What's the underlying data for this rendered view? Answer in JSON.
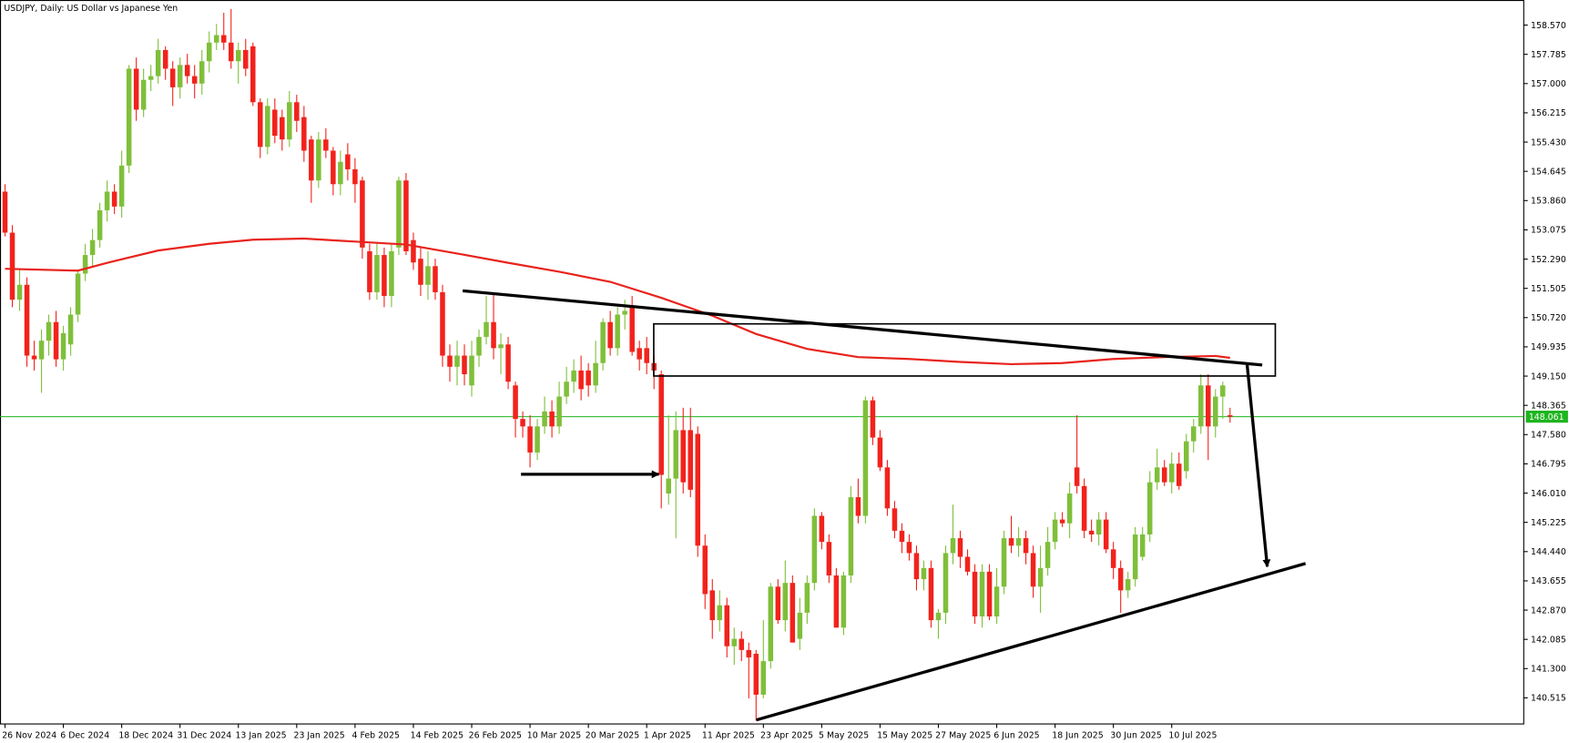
{
  "chart_data": {
    "type": "candlestick",
    "title": "USDJPY, Daily:  US Dollar vs Japanese Yen",
    "categories": [
      "26 Nov 2024",
      null,
      null,
      null,
      null,
      null,
      null,
      null,
      "6 Dec 2024",
      null,
      null,
      null,
      null,
      null,
      null,
      null,
      "18 Dec 2024",
      null,
      null,
      null,
      null,
      null,
      null,
      null,
      "31 Dec 2024",
      null,
      null,
      null,
      null,
      null,
      null,
      null,
      "13 Jan 2025",
      null,
      null,
      null,
      null,
      null,
      null,
      null,
      "23 Jan 2025",
      null,
      null,
      null,
      null,
      null,
      null,
      null,
      "4 Feb 2025",
      null,
      null,
      null,
      null,
      null,
      null,
      null,
      "14 Feb 2025",
      null,
      null,
      null,
      null,
      null,
      null,
      null,
      "26 Feb 2025",
      null,
      null,
      null,
      null,
      null,
      null,
      null,
      "10 Mar 2025",
      null,
      null,
      null,
      null,
      null,
      null,
      null,
      "20 Mar 2025",
      null,
      null,
      null,
      null,
      null,
      null,
      null,
      "1 Apr 2025",
      null,
      null,
      null,
      null,
      null,
      null,
      null,
      "11 Apr 2025",
      null,
      null,
      null,
      null,
      null,
      null,
      null,
      "23 Apr 2025",
      null,
      null,
      null,
      null,
      null,
      null,
      null,
      "5 May 2025",
      null,
      null,
      null,
      null,
      null,
      null,
      null,
      "15 May 2025",
      null,
      null,
      null,
      null,
      null,
      null,
      null,
      "27 May 2025",
      null,
      null,
      null,
      null,
      null,
      null,
      null,
      "6 Jun 2025",
      null,
      null,
      null,
      null,
      null,
      null,
      null,
      "18 Jun 2025",
      null,
      null,
      null,
      null,
      null,
      null,
      null,
      "30 Jun 2025",
      null,
      null,
      null,
      null,
      null,
      null,
      null,
      "10 Jul 2025",
      null,
      null,
      null,
      null,
      null,
      null,
      null,
      null
    ],
    "open": [
      154.1,
      153.0,
      151.2,
      151.6,
      149.7,
      149.6,
      150.1,
      150.6,
      149.6,
      150.0,
      150.8,
      151.9,
      152.4,
      152.8,
      153.6,
      154.1,
      153.7,
      154.8,
      157.4,
      156.3,
      157.1,
      157.2,
      157.9,
      157.4,
      156.9,
      157.5,
      157.2,
      157.0,
      157.6,
      158.1,
      158.3,
      158.1,
      157.6,
      157.9,
      158.0,
      156.5,
      155.3,
      156.3,
      156.1,
      155.5,
      156.5,
      156.1,
      155.5,
      154.4,
      155.5,
      155.2,
      154.3,
      155.1,
      154.7,
      154.4,
      152.5,
      151.4,
      152.4,
      151.3,
      152.6,
      154.4,
      152.8,
      152.3,
      151.6,
      152.1,
      151.4,
      149.7,
      149.4,
      149.7,
      148.9,
      149.7,
      150.2,
      150.6,
      149.9,
      150.0,
      148.9,
      148.0,
      147.8,
      147.1,
      147.8,
      148.2,
      147.8,
      148.6,
      149.0,
      149.3,
      149.3,
      148.9,
      149.5,
      150.6,
      149.9,
      150.8,
      151.0,
      149.9,
      149.9,
      149.5,
      149.2,
      146.0,
      146.4,
      147.7,
      147.7,
      147.6,
      144.6,
      143.4,
      142.6,
      143.0,
      141.9,
      142.1,
      141.8,
      141.7,
      140.6,
      141.5,
      143.5,
      142.6,
      143.6,
      142.1,
      142.8,
      143.6,
      145.4,
      144.7,
      143.8,
      142.4,
      143.8,
      145.9,
      145.4,
      148.5,
      147.5,
      146.7,
      145.6,
      145.0,
      144.7,
      144.4,
      143.7,
      144.0,
      142.6,
      142.8,
      144.4,
      144.8,
      144.3,
      143.9,
      142.7,
      143.9,
      142.7,
      143.5,
      144.8,
      144.6,
      144.8,
      144.4,
      143.5,
      144.0,
      144.7,
      145.3,
      145.2,
      146.7,
      146.2,
      145.0,
      144.9,
      145.3,
      144.5,
      144.0,
      143.4,
      143.7,
      144.3,
      144.9,
      146.3,
      146.7,
      146.3,
      146.8,
      146.6,
      147.4,
      147.8,
      148.9,
      147.8,
      148.6,
      148.1
    ],
    "high": [
      154.3,
      153.2,
      152.0,
      151.8,
      150.1,
      150.4,
      150.8,
      150.9,
      150.5,
      151.0,
      152.0,
      152.7,
      153.1,
      153.8,
      154.4,
      154.3,
      155.2,
      157.5,
      157.7,
      157.4,
      157.5,
      158.2,
      158.0,
      157.6,
      157.7,
      157.8,
      157.5,
      157.9,
      158.4,
      158.6,
      158.9,
      159.0,
      158.1,
      158.2,
      158.1,
      156.6,
      156.6,
      156.6,
      156.3,
      156.8,
      156.7,
      156.4,
      155.6,
      155.7,
      155.8,
      155.3,
      155.2,
      155.4,
      155.0,
      154.5,
      152.7,
      152.7,
      152.6,
      152.7,
      154.5,
      154.6,
      153.0,
      152.6,
      152.5,
      152.3,
      151.6,
      150.0,
      150.1,
      150.0,
      150.1,
      150.4,
      151.3,
      151.4,
      150.3,
      150.2,
      149.0,
      148.2,
      148.1,
      148.0,
      148.6,
      148.5,
      149.0,
      149.4,
      149.6,
      149.7,
      149.5,
      150.1,
      150.7,
      150.9,
      151.0,
      151.2,
      151.3,
      150.1,
      150.2,
      149.7,
      149.3,
      148.1,
      148.2,
      148.3,
      148.3,
      147.8,
      144.9,
      143.7,
      143.4,
      143.2,
      142.4,
      142.3,
      142.0,
      141.8,
      142.6,
      143.6,
      143.7,
      144.2,
      143.8,
      143.2,
      143.8,
      145.6,
      145.5,
      144.9,
      144.0,
      143.9,
      146.2,
      146.4,
      148.6,
      148.6,
      147.7,
      146.9,
      145.8,
      145.2,
      144.9,
      144.6,
      144.2,
      144.2,
      142.9,
      144.6,
      145.7,
      145.0,
      144.5,
      144.1,
      144.1,
      144.1,
      144.0,
      145.0,
      145.4,
      145.1,
      145.0,
      144.6,
      144.6,
      145.1,
      145.5,
      145.5,
      146.3,
      148.1,
      146.4,
      145.3,
      145.5,
      145.5,
      144.7,
      144.2,
      143.9,
      145.1,
      145.1,
      146.6,
      147.2,
      146.9,
      147.1,
      147.1,
      147.6,
      148.0,
      149.2,
      149.2,
      148.8,
      149.0,
      148.3
    ],
    "low": [
      152.9,
      151.0,
      150.9,
      149.4,
      149.3,
      148.7,
      149.7,
      149.4,
      149.3,
      149.7,
      150.6,
      151.7,
      152.1,
      152.6,
      153.3,
      153.5,
      153.4,
      154.6,
      156.0,
      156.1,
      156.8,
      157.0,
      157.1,
      156.4,
      156.6,
      157.0,
      156.6,
      156.7,
      157.3,
      157.9,
      157.9,
      157.4,
      157.0,
      157.2,
      156.4,
      155.0,
      155.1,
      155.4,
      155.2,
      155.3,
      155.7,
      154.9,
      153.8,
      154.2,
      155.0,
      154.0,
      154.0,
      154.4,
      153.8,
      152.3,
      151.2,
      151.2,
      151.0,
      151.0,
      152.4,
      152.4,
      152.0,
      151.3,
      151.2,
      151.2,
      149.4,
      149.0,
      148.9,
      148.9,
      148.6,
      149.4,
      150.0,
      149.6,
      149.2,
      148.8,
      147.5,
      147.5,
      146.7,
      146.9,
      147.6,
      147.5,
      147.6,
      148.4,
      148.7,
      148.5,
      148.6,
      148.7,
      149.3,
      149.7,
      149.7,
      150.4,
      149.7,
      149.3,
      149.2,
      148.8,
      145.6,
      145.7,
      144.8,
      146.0,
      145.9,
      144.3,
      142.9,
      142.1,
      142.3,
      141.6,
      141.4,
      141.5,
      140.5,
      139.9,
      140.5,
      141.3,
      142.5,
      142.3,
      142.0,
      141.8,
      142.5,
      143.4,
      144.5,
      143.6,
      142.4,
      142.2,
      143.6,
      145.2,
      145.2,
      147.3,
      146.6,
      145.4,
      144.8,
      144.4,
      144.2,
      143.4,
      143.4,
      142.4,
      142.1,
      142.5,
      144.1,
      144.0,
      143.8,
      142.5,
      142.4,
      142.6,
      142.5,
      143.3,
      144.4,
      144.3,
      144.1,
      143.2,
      142.8,
      143.8,
      144.5,
      145.1,
      144.8,
      146.0,
      144.8,
      144.7,
      144.6,
      144.4,
      143.7,
      142.8,
      143.2,
      143.5,
      144.2,
      144.7,
      146.1,
      146.2,
      146.0,
      146.1,
      146.4,
      147.1,
      147.6,
      146.9,
      147.5,
      148.0,
      147.9
    ],
    "close": [
      153.0,
      151.2,
      151.6,
      149.7,
      149.6,
      150.1,
      150.6,
      149.6,
      150.3,
      150.8,
      151.9,
      152.4,
      152.8,
      153.6,
      154.1,
      153.7,
      154.8,
      157.4,
      156.3,
      157.1,
      157.2,
      157.9,
      157.4,
      156.9,
      157.5,
      157.2,
      157.0,
      157.6,
      158.1,
      158.3,
      158.1,
      157.6,
      157.9,
      157.4,
      156.5,
      155.3,
      156.4,
      155.6,
      155.5,
      156.5,
      156.0,
      155.2,
      154.4,
      155.5,
      155.2,
      154.3,
      154.9,
      154.7,
      154.3,
      152.6,
      151.4,
      152.4,
      151.3,
      152.5,
      154.4,
      152.5,
      152.2,
      151.6,
      152.1,
      151.4,
      149.7,
      149.4,
      149.7,
      149.2,
      149.7,
      150.2,
      150.6,
      149.9,
      150.0,
      149.0,
      148.0,
      147.8,
      147.1,
      147.8,
      148.2,
      147.8,
      148.6,
      149.0,
      149.3,
      148.8,
      148.9,
      149.5,
      150.6,
      149.9,
      150.8,
      150.9,
      149.8,
      149.6,
      149.5,
      149.3,
      146.5,
      146.4,
      147.7,
      146.3,
      146.1,
      144.6,
      143.3,
      142.6,
      143.0,
      141.9,
      142.1,
      141.8,
      141.6,
      140.6,
      141.5,
      143.5,
      142.6,
      143.6,
      142.0,
      142.8,
      143.6,
      145.4,
      144.7,
      143.8,
      142.4,
      143.8,
      145.9,
      145.4,
      148.5,
      147.5,
      146.7,
      145.6,
      145.0,
      144.7,
      144.4,
      143.7,
      144.0,
      142.6,
      142.8,
      144.4,
      144.8,
      144.3,
      143.9,
      142.7,
      143.9,
      142.7,
      143.5,
      144.8,
      144.6,
      144.8,
      144.4,
      143.5,
      144.0,
      144.7,
      145.3,
      145.2,
      146.0,
      146.2,
      145.0,
      144.9,
      145.3,
      144.5,
      144.0,
      143.4,
      143.7,
      144.9,
      144.9,
      146.3,
      146.7,
      146.3,
      146.8,
      146.2,
      147.4,
      147.8,
      148.9,
      147.8,
      148.6,
      148.9,
      148.06
    ],
    "up_color": "#7fbf3a",
    "down_color": "#f2221c",
    "moving_average": {
      "color": "#e8231c",
      "x": [
        0,
        10,
        14,
        21,
        28,
        34,
        41,
        48,
        55,
        62,
        69,
        76,
        83,
        90,
        97,
        103,
        110,
        117,
        124,
        131,
        138,
        145,
        152,
        159,
        166,
        168
      ],
      "values": [
        152.03,
        151.98,
        152.19,
        152.52,
        152.7,
        152.81,
        152.84,
        152.76,
        152.68,
        152.44,
        152.19,
        151.95,
        151.68,
        151.25,
        150.77,
        150.28,
        149.88,
        149.66,
        149.61,
        149.53,
        149.47,
        149.5,
        149.61,
        149.66,
        149.69,
        149.64
      ]
    },
    "current_price": 148.061,
    "current_price_color": "#1fb51f",
    "ylim": [
      139.815,
      159.243
    ],
    "yticks": [
      {
        "value": 158.57,
        "label": "158.570"
      },
      157.785,
      {
        "value": 157,
        "label": "157.000"
      },
      156.215,
      {
        "value": 155.43,
        "label": "155.430"
      },
      154.645,
      {
        "value": 153.86,
        "label": "153.860"
      },
      153.075,
      {
        "value": 152.29,
        "label": "152.290"
      },
      151.505,
      {
        "value": 150.72,
        "label": "150.720"
      },
      149.935,
      {
        "value": 149.15,
        "label": "149.150"
      },
      148.365,
      {
        "value": 147.58,
        "label": "147.580"
      },
      146.795,
      {
        "value": 146.01,
        "label": "146.010"
      },
      145.225,
      {
        "value": 144.44,
        "label": "144.440"
      },
      143.655,
      {
        "value": 142.87,
        "label": "142.870"
      },
      142.085,
      {
        "value": 141.3,
        "label": "141.300"
      },
      140.515
    ]
  }
}
